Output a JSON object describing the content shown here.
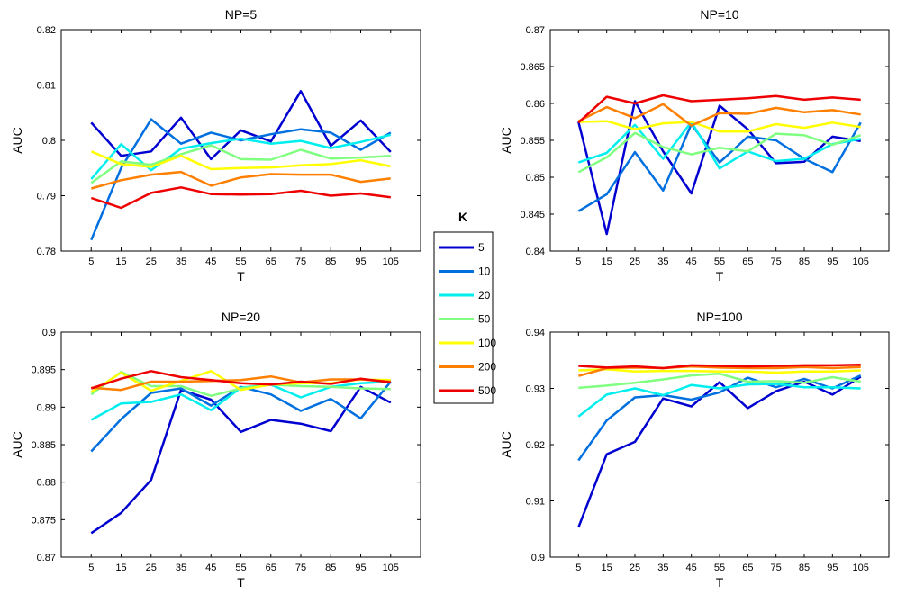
{
  "chart_data": [
    {
      "type": "line",
      "title": "NP=5",
      "xlabel": "T",
      "ylabel": "AUC",
      "x": [
        5,
        15,
        25,
        35,
        45,
        55,
        65,
        75,
        85,
        95,
        105
      ],
      "xticks": [
        "5",
        "15",
        "25",
        "35",
        "45",
        "55",
        "65",
        "75",
        "85",
        "95",
        "105"
      ],
      "xlim": [
        -5,
        115
      ],
      "ylim": [
        0.78,
        0.82
      ],
      "yticks": [
        0.78,
        0.79,
        0.8,
        0.81,
        0.82
      ],
      "ytick_labels": [
        "0.78",
        "0.79",
        "0.8",
        "0.81",
        "0.82"
      ],
      "grid": false,
      "series": [
        {
          "name": "5",
          "color": "#0000d0",
          "values": [
            0.8032,
            0.7972,
            0.798,
            0.8041,
            0.7966,
            0.8018,
            0.7998,
            0.8089,
            0.799,
            0.8036,
            0.7979
          ]
        },
        {
          "name": "10",
          "color": "#0070e0",
          "values": [
            0.782,
            0.795,
            0.8038,
            0.7994,
            0.8014,
            0.8,
            0.8011,
            0.802,
            0.8014,
            0.7983,
            0.8014
          ]
        },
        {
          "name": "20",
          "color": "#00eeee",
          "values": [
            0.793,
            0.7993,
            0.7946,
            0.7985,
            0.7995,
            0.8003,
            0.7994,
            0.7999,
            0.7986,
            0.7997,
            0.801
          ]
        },
        {
          "name": "50",
          "color": "#80ff80",
          "values": [
            0.7923,
            0.7962,
            0.7956,
            0.7975,
            0.7991,
            0.7966,
            0.7965,
            0.7983,
            0.7967,
            0.7969,
            0.7972
          ]
        },
        {
          "name": "100",
          "color": "#ffff00",
          "values": [
            0.798,
            0.7957,
            0.7952,
            0.7972,
            0.7948,
            0.795,
            0.7951,
            0.7955,
            0.7957,
            0.7964,
            0.7953
          ]
        },
        {
          "name": "200",
          "color": "#ff8000",
          "values": [
            0.7913,
            0.7928,
            0.7938,
            0.7943,
            0.7918,
            0.7933,
            0.7939,
            0.7938,
            0.7938,
            0.7925,
            0.7931
          ]
        },
        {
          "name": "500",
          "color": "#ee0000",
          "values": [
            0.7896,
            0.7878,
            0.7905,
            0.7915,
            0.7903,
            0.7902,
            0.7903,
            0.7909,
            0.79,
            0.7904,
            0.7897
          ]
        }
      ]
    },
    {
      "type": "line",
      "title": "NP=10",
      "xlabel": "T",
      "ylabel": "AUC",
      "x": [
        5,
        15,
        25,
        35,
        45,
        55,
        65,
        75,
        85,
        95,
        105
      ],
      "xticks": [
        "5",
        "15",
        "25",
        "35",
        "45",
        "55",
        "65",
        "75",
        "85",
        "95",
        "105"
      ],
      "xlim": [
        -5,
        115
      ],
      "ylim": [
        0.84,
        0.87
      ],
      "yticks": [
        0.84,
        0.845,
        0.85,
        0.855,
        0.86,
        0.865,
        0.87
      ],
      "ytick_labels": [
        "0.84",
        "0.845",
        "0.85",
        "0.855",
        "0.86",
        "0.865",
        "0.87"
      ],
      "grid": false,
      "series": [
        {
          "name": "5",
          "color": "#0000d0",
          "values": [
            0.8575,
            0.8423,
            0.8603,
            0.8535,
            0.8478,
            0.8597,
            0.8565,
            0.8519,
            0.8521,
            0.8555,
            0.8549
          ]
        },
        {
          "name": "10",
          "color": "#0070e0",
          "values": [
            0.8454,
            0.8477,
            0.8534,
            0.8482,
            0.8572,
            0.852,
            0.8555,
            0.855,
            0.8525,
            0.8507,
            0.8574
          ]
        },
        {
          "name": "20",
          "color": "#00eeee",
          "values": [
            0.852,
            0.8533,
            0.8571,
            0.8525,
            0.8575,
            0.8512,
            0.8535,
            0.8522,
            0.8525,
            0.8545,
            0.8552
          ]
        },
        {
          "name": "50",
          "color": "#80ff80",
          "values": [
            0.8507,
            0.8527,
            0.856,
            0.8541,
            0.8531,
            0.854,
            0.8535,
            0.8559,
            0.8557,
            0.8544,
            0.8557
          ]
        },
        {
          "name": "100",
          "color": "#ffff00",
          "values": [
            0.8575,
            0.8576,
            0.8565,
            0.8573,
            0.8575,
            0.8562,
            0.8562,
            0.8572,
            0.8567,
            0.8574,
            0.8568
          ]
        },
        {
          "name": "200",
          "color": "#ff8000",
          "values": [
            0.8576,
            0.8595,
            0.858,
            0.8599,
            0.857,
            0.8587,
            0.8586,
            0.8594,
            0.8588,
            0.8591,
            0.8585
          ]
        },
        {
          "name": "500",
          "color": "#ee0000",
          "values": [
            0.8574,
            0.8609,
            0.86,
            0.8611,
            0.8603,
            0.8605,
            0.8607,
            0.861,
            0.8605,
            0.8608,
            0.8605
          ]
        }
      ]
    },
    {
      "type": "line",
      "title": "NP=20",
      "xlabel": "T",
      "ylabel": "AUC",
      "x": [
        5,
        15,
        25,
        35,
        45,
        55,
        65,
        75,
        85,
        95,
        105
      ],
      "xticks": [
        "5",
        "15",
        "25",
        "35",
        "45",
        "55",
        "65",
        "75",
        "85",
        "95",
        "105"
      ],
      "xlim": [
        -5,
        115
      ],
      "ylim": [
        0.87,
        0.9
      ],
      "yticks": [
        0.87,
        0.875,
        0.88,
        0.885,
        0.89,
        0.895,
        0.9
      ],
      "ytick_labels": [
        "0.87",
        "0.875",
        "0.88",
        "0.885",
        "0.89",
        "0.895",
        "0.9"
      ],
      "grid": false,
      "series": [
        {
          "name": "5",
          "color": "#0000d0",
          "values": [
            0.8732,
            0.8759,
            0.8803,
            0.8923,
            0.891,
            0.8867,
            0.8883,
            0.8878,
            0.8868,
            0.8927,
            0.8906
          ]
        },
        {
          "name": "10",
          "color": "#0070e0",
          "values": [
            0.8841,
            0.8884,
            0.8919,
            0.8925,
            0.8902,
            0.8927,
            0.8917,
            0.8895,
            0.8911,
            0.8885,
            0.8934
          ]
        },
        {
          "name": "20",
          "color": "#00eeee",
          "values": [
            0.8883,
            0.8905,
            0.8907,
            0.8917,
            0.8896,
            0.8926,
            0.893,
            0.8913,
            0.8927,
            0.8932,
            0.8934
          ]
        },
        {
          "name": "50",
          "color": "#80ff80",
          "values": [
            0.8917,
            0.8947,
            0.8928,
            0.8928,
            0.8915,
            0.8925,
            0.893,
            0.8928,
            0.8927,
            0.8925,
            0.8924
          ]
        },
        {
          "name": "100",
          "color": "#ffff00",
          "values": [
            0.892,
            0.8946,
            0.8922,
            0.8935,
            0.8948,
            0.8923,
            0.893,
            0.8932,
            0.8932,
            0.8937,
            0.8936
          ]
        },
        {
          "name": "200",
          "color": "#ff8000",
          "values": [
            0.8926,
            0.8923,
            0.8934,
            0.8934,
            0.8935,
            0.8936,
            0.8941,
            0.8933,
            0.8937,
            0.8937,
            0.8934
          ]
        },
        {
          "name": "500",
          "color": "#ee0000",
          "values": [
            0.8925,
            0.8938,
            0.8948,
            0.894,
            0.8936,
            0.8932,
            0.893,
            0.8934,
            0.8931,
            0.8938,
            0.8933
          ]
        }
      ]
    },
    {
      "type": "line",
      "title": "NP=100",
      "xlabel": "T",
      "ylabel": "AUC",
      "x": [
        5,
        15,
        25,
        35,
        45,
        55,
        65,
        75,
        85,
        95,
        105
      ],
      "xticks": [
        "5",
        "15",
        "25",
        "35",
        "45",
        "55",
        "65",
        "75",
        "85",
        "95",
        "105"
      ],
      "xlim": [
        -5,
        115
      ],
      "ylim": [
        0.9,
        0.94
      ],
      "yticks": [
        0.9,
        0.91,
        0.92,
        0.93,
        0.94
      ],
      "ytick_labels": [
        "0.9",
        "0.91",
        "0.92",
        "0.93",
        "0.94"
      ],
      "grid": false,
      "series": [
        {
          "name": "5",
          "color": "#0000d0",
          "values": [
            0.9053,
            0.9183,
            0.9205,
            0.9282,
            0.9268,
            0.9311,
            0.9265,
            0.9295,
            0.9312,
            0.9289,
            0.9321
          ]
        },
        {
          "name": "10",
          "color": "#0070e0",
          "values": [
            0.9172,
            0.9243,
            0.9284,
            0.9288,
            0.928,
            0.9293,
            0.9319,
            0.9302,
            0.9317,
            0.93,
            0.9323
          ]
        },
        {
          "name": "20",
          "color": "#00eeee",
          "values": [
            0.925,
            0.9289,
            0.93,
            0.9288,
            0.9306,
            0.93,
            0.9307,
            0.9308,
            0.9302,
            0.9302,
            0.93
          ]
        },
        {
          "name": "50",
          "color": "#80ff80",
          "values": [
            0.9301,
            0.9305,
            0.931,
            0.9316,
            0.9323,
            0.9326,
            0.9312,
            0.9313,
            0.931,
            0.932,
            0.9312
          ]
        },
        {
          "name": "100",
          "color": "#ffff00",
          "values": [
            0.9332,
            0.9334,
            0.933,
            0.9331,
            0.9331,
            0.933,
            0.933,
            0.9328,
            0.933,
            0.933,
            0.9332
          ]
        },
        {
          "name": "200",
          "color": "#ff8000",
          "values": [
            0.9322,
            0.9336,
            0.9337,
            0.9336,
            0.9339,
            0.9337,
            0.9336,
            0.9336,
            0.9338,
            0.9336,
            0.9338
          ]
        },
        {
          "name": "500",
          "color": "#ee0000",
          "values": [
            0.934,
            0.9337,
            0.9339,
            0.9336,
            0.9341,
            0.934,
            0.9339,
            0.934,
            0.9341,
            0.9341,
            0.9342
          ]
        }
      ]
    }
  ],
  "legend": {
    "title": "K",
    "placement": "center",
    "entries": [
      {
        "label": "5",
        "color": "#0000d0"
      },
      {
        "label": "10",
        "color": "#0070e0"
      },
      {
        "label": "20",
        "color": "#00eeee"
      },
      {
        "label": "50",
        "color": "#80ff80"
      },
      {
        "label": "100",
        "color": "#ffff00"
      },
      {
        "label": "200",
        "color": "#ff8000"
      },
      {
        "label": "500",
        "color": "#ee0000"
      }
    ]
  }
}
